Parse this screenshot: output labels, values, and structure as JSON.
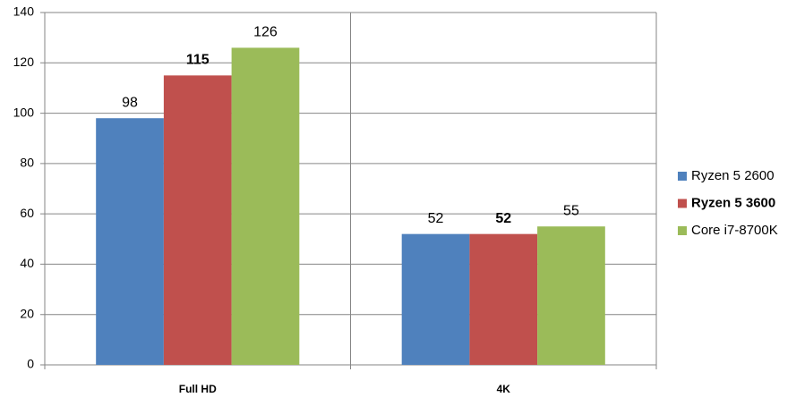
{
  "chart_data": {
    "type": "bar",
    "categories": [
      "Full HD",
      "4K"
    ],
    "series": [
      {
        "name": "Ryzen 5 2600",
        "color": "#4f81bd",
        "bold": false,
        "values": [
          98,
          52
        ]
      },
      {
        "name": "Ryzen 5 3600",
        "color": "#c0504d",
        "bold": true,
        "values": [
          115,
          52
        ]
      },
      {
        "name": "Core i7-8700K",
        "color": "#9bbb59",
        "bold": false,
        "values": [
          126,
          55
        ]
      }
    ],
    "ylim": [
      0,
      140
    ],
    "yticks": [
      0,
      20,
      40,
      60,
      80,
      100,
      120,
      140
    ],
    "grid": true,
    "legend": "right"
  }
}
